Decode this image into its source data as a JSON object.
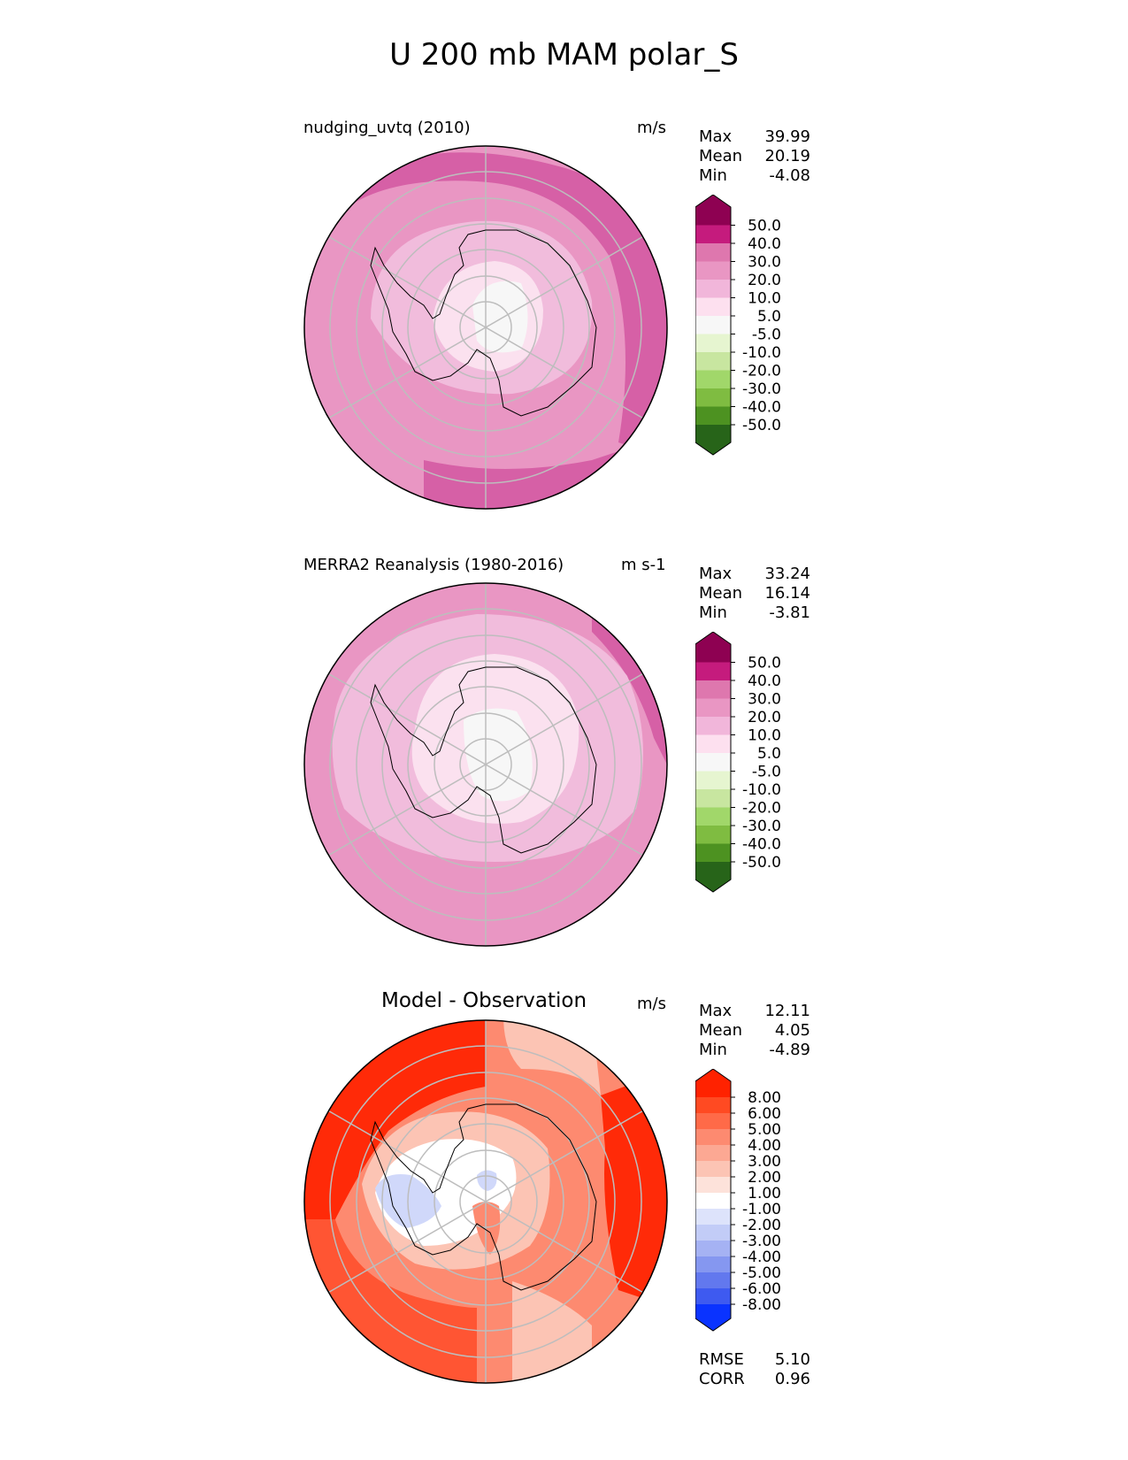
{
  "figure": {
    "title": "U 200 mb MAM polar_S"
  },
  "panels": [
    {
      "id": "test",
      "name": "nudging_uvtq (2010)",
      "units": "m/s",
      "stats": [
        {
          "label": "Max",
          "value": "39.99"
        },
        {
          "label": "Mean",
          "value": "20.19"
        },
        {
          "label": "Min",
          "value": "-4.08"
        }
      ],
      "colorbar": {
        "ticks": [
          "50.0",
          "40.0",
          "30.0",
          "20.0",
          "10.0",
          "5.0",
          "-5.0",
          "-10.0",
          "-20.0",
          "-30.0",
          "-40.0",
          "-50.0"
        ],
        "colors": [
          "#8e0152",
          "#c51b7d",
          "#de77ae",
          "#e996c3",
          "#f1b6da",
          "#fde0ef",
          "#f7f7f7",
          "#e6f5d0",
          "#c8e6a0",
          "#a1d76a",
          "#7fbc41",
          "#4d9221",
          "#276419"
        ],
        "extend": "both"
      },
      "field_bands": [
        {
          "level": "30 to 40",
          "color": "#d660a6"
        },
        {
          "level": "20 to 30",
          "color": "#e996c3"
        },
        {
          "level": "10 to 20",
          "color": "#f1bcdc"
        },
        {
          "level": "5 to 10",
          "color": "#fbe1ef"
        },
        {
          "level": "-5 to 5",
          "color": "#f7f7f7"
        }
      ]
    },
    {
      "id": "reference",
      "name": "MERRA2 Reanalysis (1980-2016)",
      "units": "m s-1",
      "stats": [
        {
          "label": "Max",
          "value": "33.24"
        },
        {
          "label": "Mean",
          "value": "16.14"
        },
        {
          "label": "Min",
          "value": "-3.81"
        }
      ],
      "colorbar": {
        "ticks": [
          "50.0",
          "40.0",
          "30.0",
          "20.0",
          "10.0",
          "5.0",
          "-5.0",
          "-10.0",
          "-20.0",
          "-30.0",
          "-40.0",
          "-50.0"
        ],
        "colors": [
          "#8e0152",
          "#c51b7d",
          "#de77ae",
          "#e996c3",
          "#f1b6da",
          "#fde0ef",
          "#f7f7f7",
          "#e6f5d0",
          "#c8e6a0",
          "#a1d76a",
          "#7fbc41",
          "#4d9221",
          "#276419"
        ],
        "extend": "both"
      },
      "field_bands": [
        {
          "level": "30 to 40",
          "color": "#d660a6"
        },
        {
          "level": "20 to 30",
          "color": "#e996c3"
        },
        {
          "level": "10 to 20",
          "color": "#f1bcdc"
        },
        {
          "level": "5 to 10",
          "color": "#fbe1ef"
        },
        {
          "level": "-5 to 5",
          "color": "#f7f7f7"
        }
      ]
    },
    {
      "id": "diff",
      "name": "Model - Observation",
      "units": "m/s",
      "stats": [
        {
          "label": "Max",
          "value": "12.11"
        },
        {
          "label": "Mean",
          "value": "4.05"
        },
        {
          "label": "Min",
          "value": "-4.89"
        }
      ],
      "extra_stats": [
        {
          "label": "RMSE",
          "value": "5.10"
        },
        {
          "label": "CORR",
          "value": "0.96"
        }
      ],
      "colorbar": {
        "ticks": [
          "8.00",
          "6.00",
          "5.00",
          "4.00",
          "3.00",
          "2.00",
          "1.00",
          "-1.00",
          "-2.00",
          "-3.00",
          "-4.00",
          "-5.00",
          "-6.00",
          "-8.00"
        ],
        "colors": [
          "#ff2200",
          "#ff4a22",
          "#ff6a48",
          "#fd8a70",
          "#fca893",
          "#fcc4b4",
          "#fde2da",
          "#ffffff",
          "#dde3fb",
          "#c2ccf7",
          "#a5b2f3",
          "#8597f0",
          "#6278ee",
          "#3e5af0",
          "#0a33ff"
        ],
        "extend": "both"
      },
      "field_bands": [
        {
          "level": "6 to 8",
          "color": "#ff2a08"
        },
        {
          "level": "5 to 6",
          "color": "#ff5533"
        },
        {
          "level": "3 to 5",
          "color": "#fd8a70"
        },
        {
          "level": "1 to 3",
          "color": "#fcc4b4"
        },
        {
          "level": "-1 to 1",
          "color": "#ffffff"
        },
        {
          "level": "-3 to -1",
          "color": "#d0d8fa"
        }
      ]
    }
  ]
}
